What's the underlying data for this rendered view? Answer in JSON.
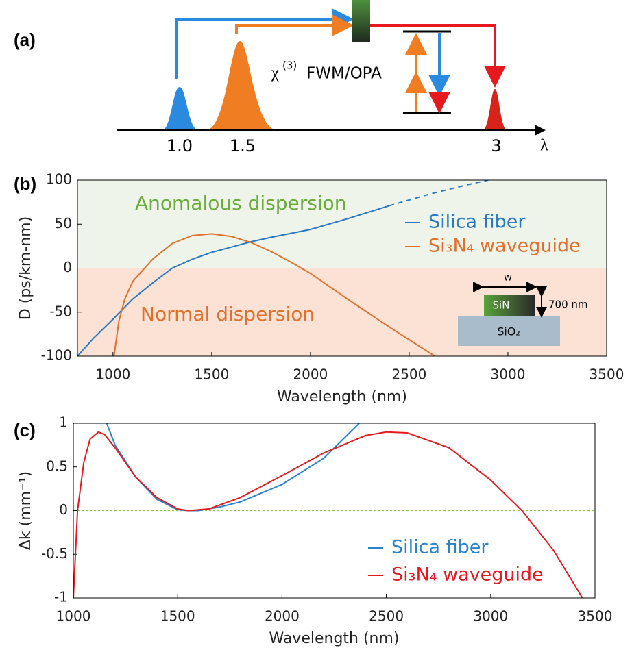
{
  "panel_a": {
    "label": "(a)",
    "pulses": [
      "1.0",
      "1.5",
      "3"
    ],
    "axis_label": "λ",
    "process": {
      "symbol": "χ",
      "superscript": "(3)",
      "name": "FWM/OPA"
    }
  },
  "chart_data": [
    {
      "type": "line",
      "panel_label": "(b)",
      "xlabel": "Wavelength (nm)",
      "ylabel": "D (ps/km-nm)",
      "xlim": [
        820,
        3500
      ],
      "ylim": [
        -100,
        100
      ],
      "xticks": [
        1000,
        1500,
        2000,
        2500,
        3000,
        3500
      ],
      "yticks": [
        -100,
        -50,
        0,
        50,
        100
      ],
      "regions": [
        {
          "label": "Anomalous dispersion",
          "fill": "#eef4e9",
          "color": "#6aab3c"
        },
        {
          "label": "Normal dispersion",
          "fill": "#fbe2d5",
          "color": "#e0702a"
        }
      ],
      "inset": {
        "width_label": "w",
        "core": "SiN",
        "height": "700 nm",
        "substrate": "SiO₂"
      },
      "legend": "right",
      "series": [
        {
          "name": "Silica fiber",
          "color": "#2a78c2",
          "dashed_from": 2400,
          "x": [
            820,
            900,
            1000,
            1100,
            1200,
            1300,
            1400,
            1500,
            1600,
            1700,
            1800,
            2000,
            2200,
            2400,
            2600,
            2800,
            2900
          ],
          "values": [
            -100,
            -80,
            -58,
            -35,
            -17,
            0,
            10,
            18,
            24,
            30,
            35,
            44,
            57,
            71,
            84,
            95,
            100
          ]
        },
        {
          "name": "Si₃N₄ waveguide",
          "color": "#e0702a",
          "x": [
            1005,
            1030,
            1060,
            1100,
            1200,
            1300,
            1400,
            1500,
            1600,
            1700,
            1800,
            1900,
            2000,
            2200,
            2400,
            2630
          ],
          "values": [
            -100,
            -60,
            -35,
            -15,
            10,
            28,
            37,
            39,
            36,
            29,
            19,
            7,
            -6,
            -37,
            -67,
            -100
          ]
        }
      ]
    },
    {
      "type": "line",
      "panel_label": "(c)",
      "xlabel": "Wavelength (nm)",
      "ylabel": "Δk (mm⁻¹)",
      "xlim": [
        1000,
        3500
      ],
      "ylim": [
        -1,
        1
      ],
      "xticks": [
        1000,
        1500,
        2000,
        2500,
        3000,
        3500
      ],
      "yticks": [
        -1,
        -0.5,
        0,
        0.5,
        1
      ],
      "zero_line": {
        "color": "#8cc63f"
      },
      "legend": "lower right",
      "series": [
        {
          "name": "Silica fiber",
          "color": "#2a82cc",
          "x": [
            1160,
            1200,
            1300,
            1400,
            1500,
            1550,
            1600,
            1700,
            1800,
            2000,
            2200,
            2370
          ],
          "values": [
            1,
            0.75,
            0.38,
            0.13,
            0.01,
            0,
            0,
            0.04,
            0.1,
            0.3,
            0.6,
            1
          ]
        },
        {
          "name": "Si₃N₄ waveguide",
          "color": "#e8191e",
          "x": [
            1000,
            1020,
            1050,
            1080,
            1120,
            1150,
            1200,
            1300,
            1400,
            1500,
            1550,
            1650,
            1800,
            2000,
            2200,
            2400,
            2500,
            2600,
            2800,
            3000,
            3150,
            3300,
            3440
          ],
          "values": [
            -1,
            0,
            0.55,
            0.82,
            0.9,
            0.87,
            0.72,
            0.38,
            0.15,
            0.02,
            0,
            0.02,
            0.15,
            0.4,
            0.66,
            0.86,
            0.9,
            0.89,
            0.72,
            0.35,
            0,
            -0.45,
            -1
          ]
        }
      ]
    }
  ]
}
